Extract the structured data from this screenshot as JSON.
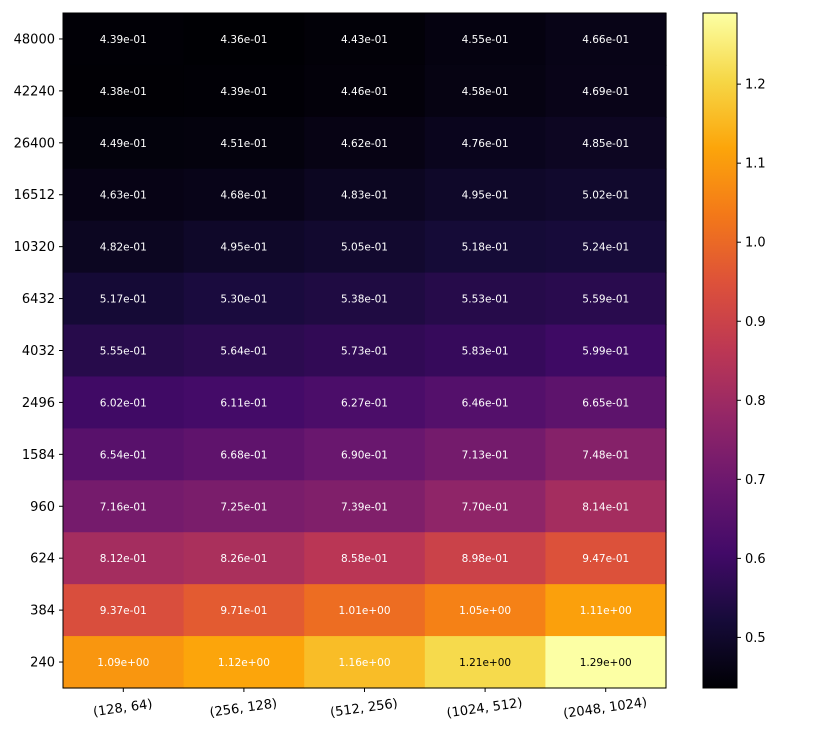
{
  "chart_data": {
    "type": "heatmap",
    "title": "",
    "xlabel": "",
    "ylabel": "",
    "colormap": "inferno",
    "x_categories": [
      "(128, 64)",
      "(256, 128)",
      "(512, 256)",
      "(1024, 512)",
      "(2048, 1024)"
    ],
    "y_categories": [
      "48000",
      "42240",
      "26400",
      "16512",
      "10320",
      "6432",
      "4032",
      "2496",
      "1584",
      "960",
      "624",
      "384",
      "240"
    ],
    "values": [
      [
        0.439,
        0.436,
        0.443,
        0.455,
        0.466
      ],
      [
        0.438,
        0.439,
        0.446,
        0.458,
        0.469
      ],
      [
        0.449,
        0.451,
        0.462,
        0.476,
        0.485
      ],
      [
        0.463,
        0.468,
        0.483,
        0.495,
        0.502
      ],
      [
        0.482,
        0.495,
        0.505,
        0.518,
        0.524
      ],
      [
        0.517,
        0.53,
        0.538,
        0.553,
        0.559
      ],
      [
        0.555,
        0.564,
        0.573,
        0.583,
        0.599
      ],
      [
        0.602,
        0.611,
        0.627,
        0.646,
        0.665
      ],
      [
        0.654,
        0.668,
        0.69,
        0.713,
        0.748
      ],
      [
        0.716,
        0.725,
        0.739,
        0.77,
        0.814
      ],
      [
        0.812,
        0.826,
        0.858,
        0.898,
        0.947
      ],
      [
        0.937,
        0.971,
        1.01,
        1.05,
        1.11
      ],
      [
        1.09,
        1.12,
        1.16,
        1.21,
        1.29
      ]
    ],
    "cell_labels": [
      [
        "4.39e-01",
        "4.36e-01",
        "4.43e-01",
        "4.55e-01",
        "4.66e-01"
      ],
      [
        "4.38e-01",
        "4.39e-01",
        "4.46e-01",
        "4.58e-01",
        "4.69e-01"
      ],
      [
        "4.49e-01",
        "4.51e-01",
        "4.62e-01",
        "4.76e-01",
        "4.85e-01"
      ],
      [
        "4.63e-01",
        "4.68e-01",
        "4.83e-01",
        "4.95e-01",
        "5.02e-01"
      ],
      [
        "4.82e-01",
        "4.95e-01",
        "5.05e-01",
        "5.18e-01",
        "5.24e-01"
      ],
      [
        "5.17e-01",
        "5.30e-01",
        "5.38e-01",
        "5.53e-01",
        "5.59e-01"
      ],
      [
        "5.55e-01",
        "5.64e-01",
        "5.73e-01",
        "5.83e-01",
        "5.99e-01"
      ],
      [
        "6.02e-01",
        "6.11e-01",
        "6.27e-01",
        "6.46e-01",
        "6.65e-01"
      ],
      [
        "6.54e-01",
        "6.68e-01",
        "6.90e-01",
        "7.13e-01",
        "7.48e-01"
      ],
      [
        "7.16e-01",
        "7.25e-01",
        "7.39e-01",
        "7.70e-01",
        "8.14e-01"
      ],
      [
        "8.12e-01",
        "8.26e-01",
        "8.58e-01",
        "8.98e-01",
        "9.47e-01"
      ],
      [
        "9.37e-01",
        "9.71e-01",
        "1.01e+00",
        "1.05e+00",
        "1.11e+00"
      ],
      [
        "1.09e+00",
        "1.12e+00",
        "1.16e+00",
        "1.21e+00",
        "1.29e+00"
      ]
    ],
    "colorbar": {
      "range": [
        0.436,
        1.29
      ],
      "ticks": [
        0.5,
        0.6,
        0.7,
        0.8,
        0.9,
        1.0,
        1.1,
        1.2
      ],
      "tick_labels": [
        "0.5",
        "0.6",
        "0.7",
        "0.8",
        "0.9",
        "1.0",
        "1.1",
        "1.2"
      ]
    },
    "grid": false,
    "legend": "colorbar-right"
  }
}
